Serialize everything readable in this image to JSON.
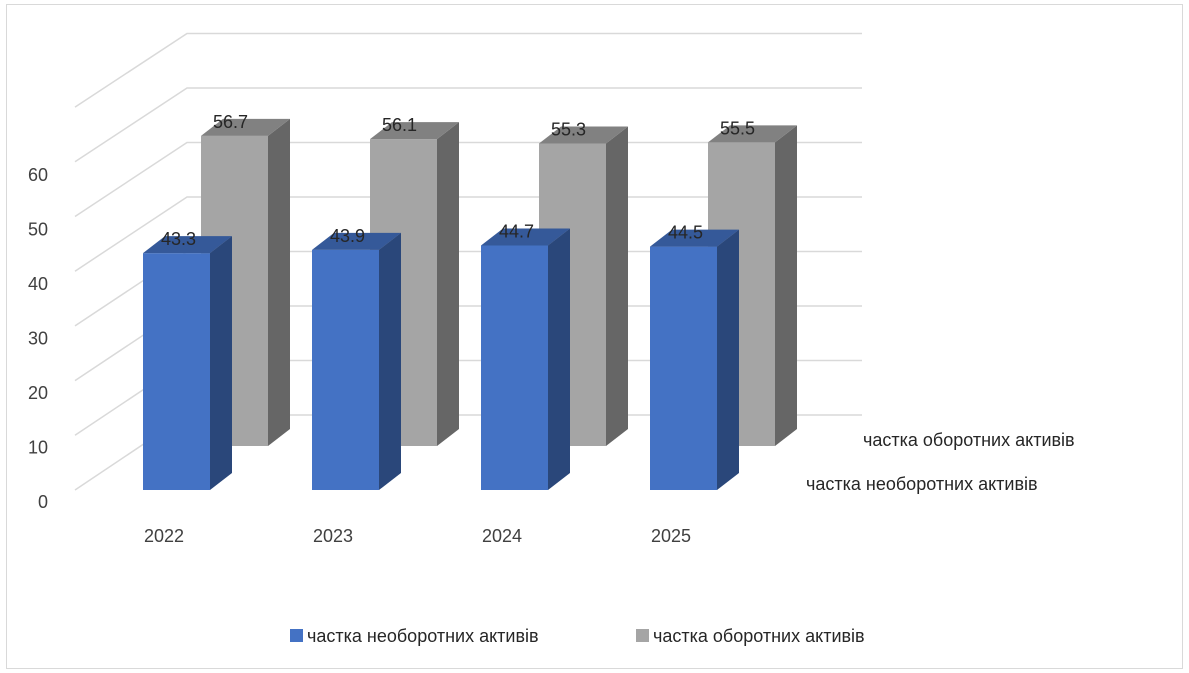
{
  "chart_data": {
    "type": "bar",
    "style": "3d-column",
    "categories": [
      "2022",
      "2023",
      "2024",
      "2025"
    ],
    "series": [
      {
        "name": "частка необоротних активів",
        "values": [
          43.3,
          43.9,
          44.7,
          44.5
        ],
        "color": "#4472c4"
      },
      {
        "name": "частка оборотних активів",
        "values": [
          56.7,
          56.1,
          55.3,
          55.5
        ],
        "color": "#a5a5a5"
      }
    ],
    "yticks": [
      "0",
      "10",
      "20",
      "30",
      "40",
      "50",
      "60"
    ],
    "ylim": [
      0,
      60
    ],
    "grid": true,
    "legend_position": "bottom",
    "data_labels": true
  }
}
